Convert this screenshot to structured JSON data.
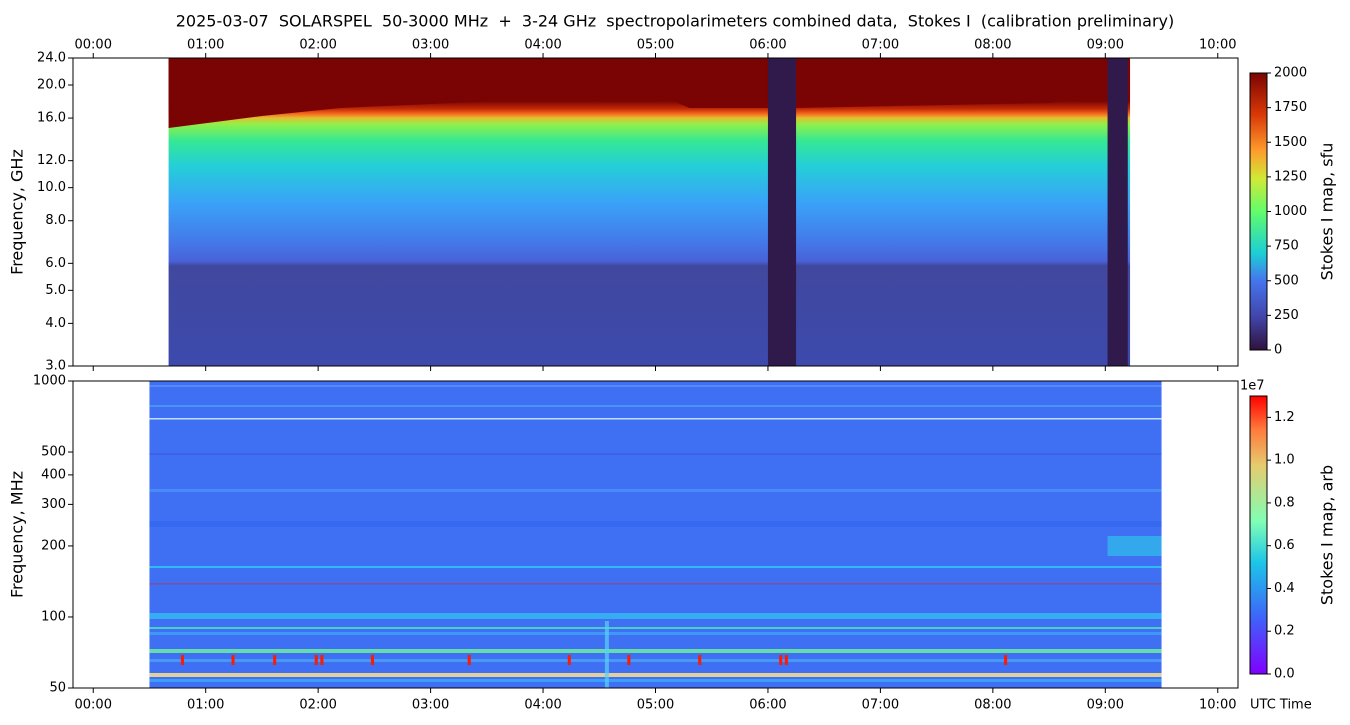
{
  "chart_data": [
    {
      "type": "heatmap",
      "title": "2025-03-07  SOLARSPEL  50-3000 MHz  +  3-24 GHz  spectropolarimeters combined data,  Stokes I  (calibration preliminary)",
      "ylabel": "Frequency, GHz",
      "yscale": "log",
      "ylim": [
        3,
        24
      ],
      "yticks": [
        {
          "value": 3,
          "label": "3.0"
        },
        {
          "value": 4,
          "label": "4.0"
        },
        {
          "value": 5,
          "label": "5.0"
        },
        {
          "value": 6,
          "label": "6.0"
        },
        {
          "value": 8,
          "label": "8.0"
        },
        {
          "value": 10,
          "label": "10.0"
        },
        {
          "value": 12,
          "label": "12.0"
        },
        {
          "value": 16,
          "label": "16.0"
        },
        {
          "value": 20,
          "label": "20.0"
        },
        {
          "value": 24,
          "label": "24.0"
        }
      ],
      "xlim": [
        -0.18,
        10.18
      ],
      "xticks": [
        {
          "value": 0,
          "label": "00:00"
        },
        {
          "value": 1,
          "label": "01:00"
        },
        {
          "value": 2,
          "label": "02:00"
        },
        {
          "value": 3,
          "label": "03:00"
        },
        {
          "value": 4,
          "label": "04:00"
        },
        {
          "value": 5,
          "label": "05:00"
        },
        {
          "value": 6,
          "label": "06:00"
        },
        {
          "value": 7,
          "label": "07:00"
        },
        {
          "value": 8,
          "label": "08:00"
        },
        {
          "value": 9,
          "label": "09:00"
        },
        {
          "value": 10,
          "label": "10:00"
        }
      ],
      "colormap": "turbo",
      "colorbar": {
        "label": "Stokes I map, sfu",
        "lim": [
          0,
          2000
        ],
        "ticks": [
          0,
          250,
          500,
          750,
          1000,
          1250,
          1500,
          1750,
          2000
        ]
      }
    },
    {
      "type": "heatmap",
      "ylabel": "Frequency, MHz",
      "xlabel": "UTC Time",
      "yscale": "log",
      "ylim": [
        50,
        1000
      ],
      "yticks": [
        50,
        100,
        200,
        300,
        400,
        500,
        1000
      ],
      "xlim": [
        -0.18,
        10.18
      ],
      "xticks": [
        {
          "value": 0,
          "label": "00:00"
        },
        {
          "value": 1,
          "label": "01:00"
        },
        {
          "value": 2,
          "label": "02:00"
        },
        {
          "value": 3,
          "label": "03:00"
        },
        {
          "value": 4,
          "label": "04:00"
        },
        {
          "value": 5,
          "label": "05:00"
        },
        {
          "value": 6,
          "label": "06:00"
        },
        {
          "value": 7,
          "label": "07:00"
        },
        {
          "value": 8,
          "label": "08:00"
        },
        {
          "value": 9,
          "label": "09:00"
        },
        {
          "value": 10,
          "label": "10:00"
        }
      ],
      "colormap": "rainbow",
      "colorbar": {
        "label": "Stokes I map, arb",
        "offset_label": "1e7",
        "lim": [
          0,
          1.3
        ],
        "ticks": [
          {
            "value": 0,
            "label": "0.0"
          },
          {
            "value": 0.2,
            "label": "0.2"
          },
          {
            "value": 0.4,
            "label": "0.4"
          },
          {
            "value": 0.6,
            "label": "0.6"
          },
          {
            "value": 0.8,
            "label": "0.8"
          },
          {
            "value": 1.0,
            "label": "1.0"
          },
          {
            "value": 1.2,
            "label": "1.2"
          }
        ]
      }
    }
  ]
}
